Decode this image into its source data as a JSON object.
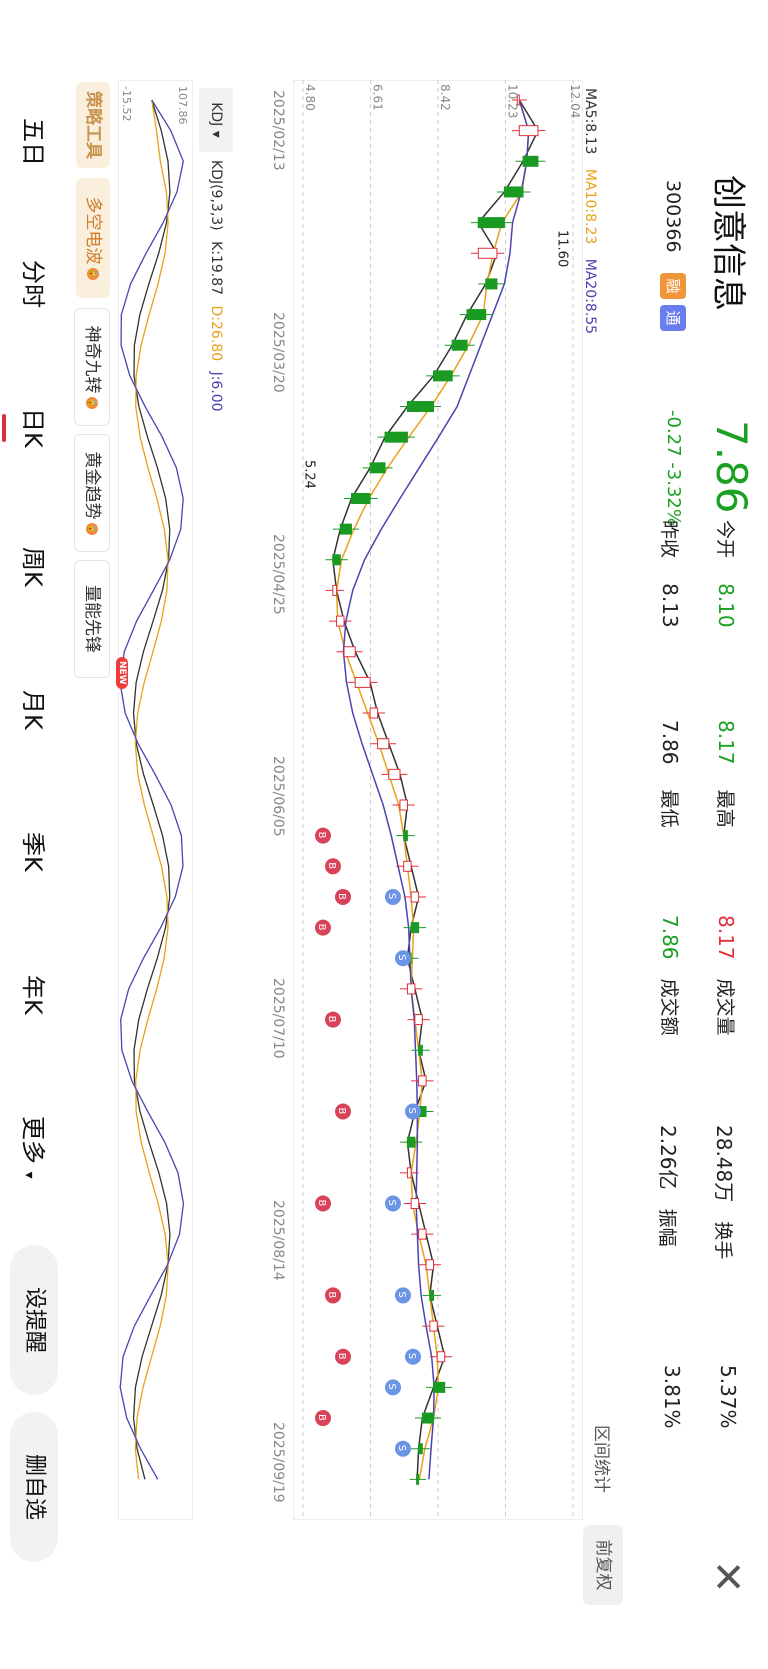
{
  "stock": {
    "name": "创意信息",
    "code": "300366",
    "tag_rong": "融",
    "tag_tong": "通",
    "price": "7.86",
    "change": "-0.27",
    "change_pct": "-3.32%"
  },
  "stats": [
    {
      "label": "今开",
      "value": "8.10",
      "color": "green"
    },
    {
      "label": "昨收",
      "value": "8.13",
      "color": "dark"
    },
    {
      "label": "最高",
      "value": "8.17",
      "color": "red"
    },
    {
      "label": "最低",
      "value": "7.86",
      "color": "green"
    },
    {
      "label": "成交量",
      "value": "28.48万",
      "color": "dark"
    },
    {
      "label": "成交额",
      "value": "2.26亿",
      "color": "dark"
    },
    {
      "label": "换手",
      "value": "5.37%",
      "color": "dark"
    },
    {
      "label": "振幅",
      "value": "3.81%",
      "color": "dark"
    }
  ],
  "controls": {
    "range_stat": "区间统计",
    "fq": "前复权",
    "close": "✕"
  },
  "ma": {
    "ma5": "MA5:8.13",
    "ma10": "MA10:8.23",
    "ma20": "MA20:8.55"
  },
  "chart_data": {
    "type": "candlestick",
    "y_ticks": [
      "12.04",
      "10.23",
      "8.42",
      "6.61",
      "4.80"
    ],
    "x_ticks": [
      "2025/02/13",
      "2025/03/20",
      "2025/04/25",
      "2025/06/05",
      "2025/07/10",
      "2025/08/14",
      "2025/09/19"
    ],
    "annotations": {
      "high": "11.60",
      "low": "5.24"
    },
    "close_path": [
      10.6,
      11.1,
      10.7,
      10.2,
      9.5,
      10.0,
      9.7,
      9.2,
      8.8,
      8.3,
      7.6,
      7.0,
      6.6,
      6.1,
      5.8,
      5.6,
      5.7,
      5.9,
      6.2,
      6.6,
      6.8,
      7.1,
      7.4,
      7.6,
      7.5,
      7.7,
      7.9,
      7.7,
      7.6,
      7.8,
      8.0,
      7.9,
      8.1,
      7.8,
      7.6,
      7.7,
      7.9,
      8.1,
      8.3,
      8.2,
      8.4,
      8.6,
      8.3,
      8.0,
      7.9,
      7.86
    ],
    "trade_marks": [
      "B",
      "S"
    ]
  },
  "kdj": {
    "selector": "KDJ",
    "params": "KDJ(9,3,3)",
    "k": "K:19.87",
    "d": "D:26.80",
    "j": "J:6.00",
    "top": "107.86",
    "bottom": "-15.52"
  },
  "tools": {
    "main": "策略工具",
    "t1": "多空电波",
    "t2": "神奇九转",
    "t3": "黄金趋势",
    "t4": "量能先锋",
    "new": "NEW"
  },
  "periods": [
    "五日",
    "分时",
    "日K",
    "周K",
    "月K",
    "季K",
    "年K",
    "更多"
  ],
  "actions": {
    "alert": "设提醒",
    "remove": "删自选"
  }
}
